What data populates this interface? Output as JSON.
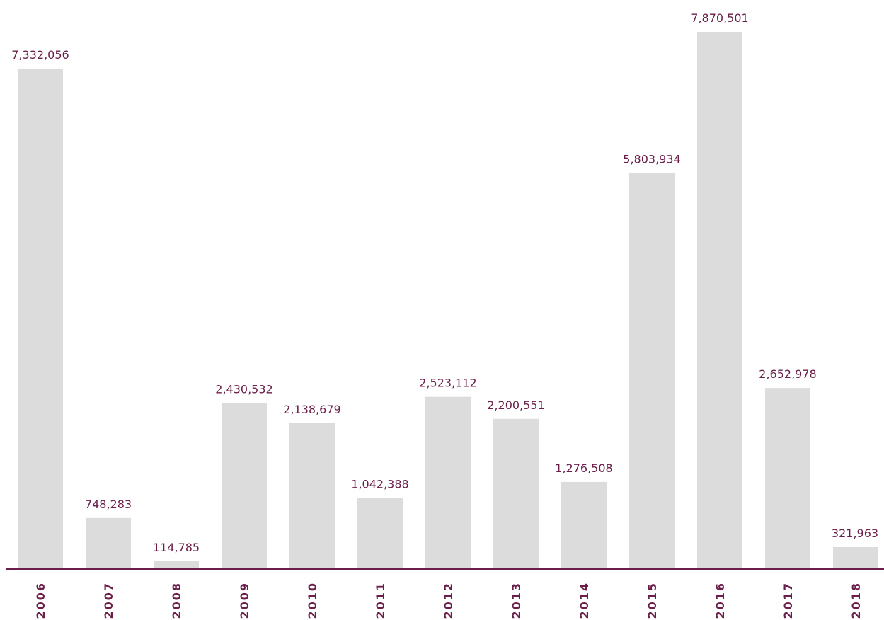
{
  "chart_data": {
    "type": "bar",
    "title": "",
    "xlabel": "",
    "ylabel": "",
    "categories": [
      "2006",
      "2007",
      "2008",
      "2009",
      "2010",
      "2011",
      "2012",
      "2013",
      "2014",
      "2015",
      "2016",
      "2017",
      "2018"
    ],
    "values": [
      7332056,
      748283,
      114785,
      2430532,
      2138679,
      1042388,
      2523112,
      2200551,
      1276508,
      5803934,
      7870501,
      2652978,
      321963
    ],
    "value_labels": [
      "7,332,056",
      "748,283",
      "114,785",
      "2,430,532",
      "2,138,679",
      "1,042,388",
      "2,523,112",
      "2,200,551",
      "1,276,508",
      "5,803,934",
      "7,870,501",
      "2,652,978",
      "321,963"
    ],
    "ylim": [
      0,
      7870501
    ],
    "grid": false,
    "bar_color": "#dcdcdc",
    "label_color": "#6b1e4a",
    "axis_color": "#6b1e4a"
  }
}
